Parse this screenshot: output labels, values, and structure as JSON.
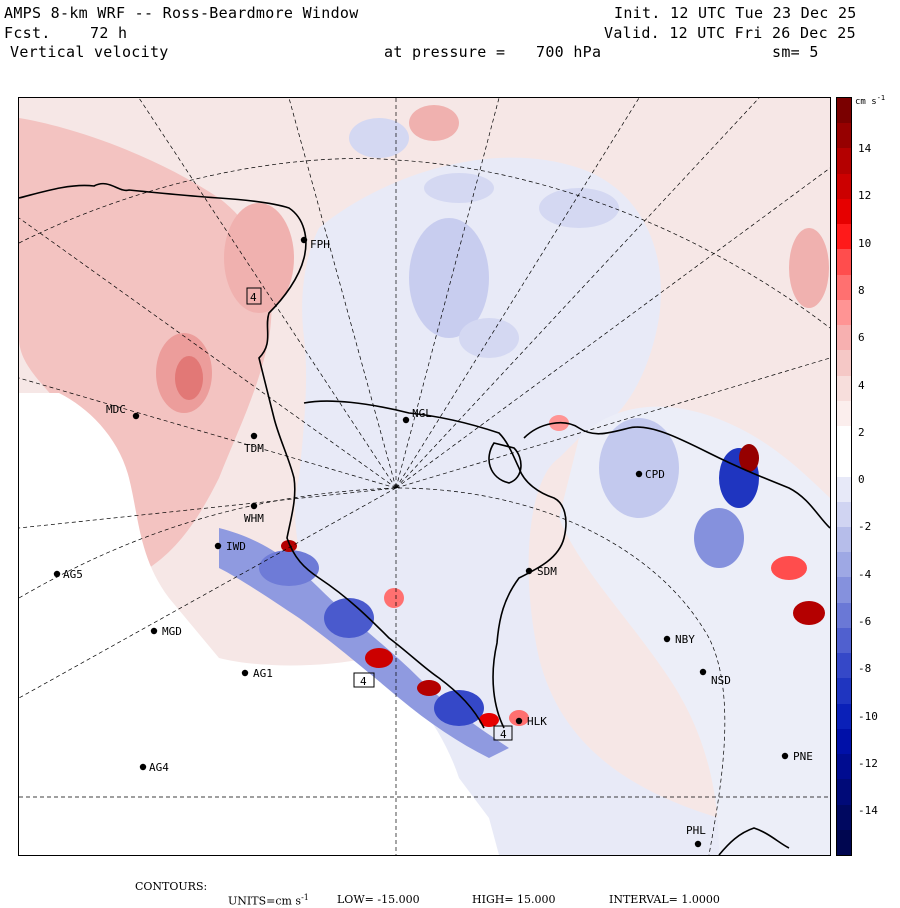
{
  "header": {
    "model": "AMPS 8-km WRF -- Ross-Beardmore Window",
    "init": "Init. 12 UTC Tue 23 Dec 25",
    "fcst_label": "Fcst.",
    "fcst_value": "72 h",
    "valid": "Valid. 12 UTC Fri 26 Dec 25",
    "field": "Vertical velocity",
    "pressure_label": "at pressure =",
    "pressure_value": "700 hPa",
    "smoothing": "sm= 5"
  },
  "colorbar": {
    "units": "cm s",
    "units_exp": "-1",
    "ticks": [
      "14",
      "12",
      "10",
      "8",
      "6",
      "4",
      "2",
      "0",
      "-2",
      "-4",
      "-6",
      "-8",
      "-10",
      "-12",
      "-14"
    ],
    "colors": [
      "#7a0000",
      "#960000",
      "#b40000",
      "#cc0000",
      "#e60000",
      "#ff1a1a",
      "#ff4d4d",
      "#ff7070",
      "#ff9494",
      "#f7b0b0",
      "#f5c8c6",
      "#f7dedc",
      "#fbeeed",
      "#ffffff",
      "#ffffff",
      "#e7e9f8",
      "#d0d4f2",
      "#b6bdea",
      "#9ea8e4",
      "#8591dd",
      "#6a78d6",
      "#5060cf",
      "#3548c8",
      "#1f35c0",
      "#0a20b8",
      "#0010a8",
      "#000c90",
      "#000a78",
      "#000860",
      "#000650"
    ]
  },
  "stations": [
    {
      "id": "MDC",
      "label": "MDC"
    },
    {
      "id": "TDM",
      "label": "TDM"
    },
    {
      "id": "WHM",
      "label": "WHM"
    },
    {
      "id": "IWD",
      "label": "IWD"
    },
    {
      "id": "AG5",
      "label": "AG5"
    },
    {
      "id": "MGD",
      "label": "MGD"
    },
    {
      "id": "AG1",
      "label": "AG1"
    },
    {
      "id": "AG4",
      "label": "AG4"
    },
    {
      "id": "NGL",
      "label": "NGL"
    },
    {
      "id": "SDM",
      "label": "SDM"
    },
    {
      "id": "FPH",
      "label": "FPH"
    },
    {
      "id": "CPD",
      "label": "CPD"
    },
    {
      "id": "NBY",
      "label": "NBY"
    },
    {
      "id": "NSD",
      "label": "NSD"
    },
    {
      "id": "HLK",
      "label": "HLK"
    },
    {
      "id": "PNE",
      "label": "PNE"
    },
    {
      "id": "PHL",
      "label": "PHL"
    }
  ],
  "markers": [
    "4",
    "4",
    "4"
  ],
  "footer": {
    "contours": "CONTOURS:",
    "units_label": "UNITS=cm s",
    "units_exp": "-1",
    "low_label": "LOW=",
    "low": "-15.000",
    "high_label": "HIGH=",
    "high": "15.000",
    "interval_label": "INTERVAL=",
    "interval": "1.0000"
  }
}
